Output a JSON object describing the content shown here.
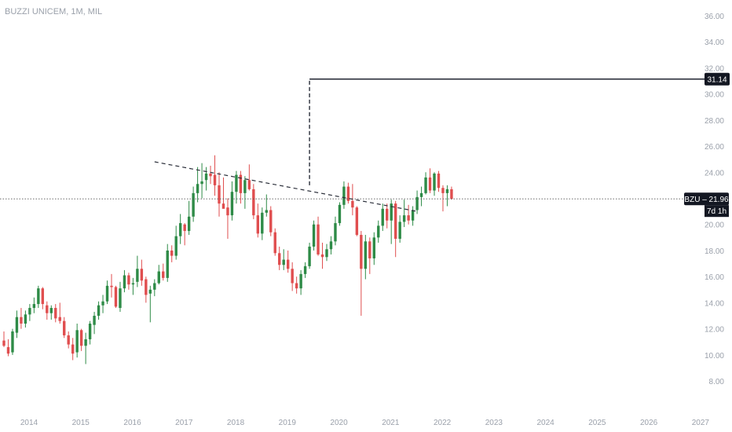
{
  "header": {
    "title": "BUZZI UNICEM, 1M, MIL"
  },
  "colors": {
    "up": "#2e8b47",
    "down": "#e04e4f",
    "axis_text": "#9aa0aa",
    "label_bg": "#131722"
  },
  "chart_data": {
    "type": "candlestick",
    "title": "BUZZI UNICEM, 1M, MIL",
    "interval": "1M",
    "ylim": [
      6.5,
      36.6
    ],
    "y_ticks": [
      8,
      10,
      12,
      14,
      16,
      18,
      20,
      22,
      24,
      26,
      28,
      30,
      32,
      34,
      36
    ],
    "y_tick_labels": [
      "8.00",
      "10.00",
      "12.00",
      "14.00",
      "16.00",
      "18.00",
      "20.00",
      "22.00",
      "24.00",
      "26.00",
      "28.00",
      "30.00",
      "32.00",
      "34.00",
      "36.00"
    ],
    "x_tick_labels": [
      "2014",
      "2015",
      "2016",
      "2017",
      "2018",
      "2019",
      "2020",
      "2021",
      "2022",
      "2023",
      "2024",
      "2025",
      "2026",
      "2027"
    ],
    "start": "2014-01",
    "candles": [
      [
        11.1,
        11.8,
        10.6,
        10.7
      ],
      [
        10.6,
        11.2,
        9.9,
        10.1
      ],
      [
        10.2,
        12.0,
        10.0,
        11.8
      ],
      [
        11.7,
        13.4,
        11.3,
        12.9
      ],
      [
        12.9,
        13.6,
        12.0,
        12.4
      ],
      [
        12.4,
        13.4,
        12.1,
        13.1
      ],
      [
        13.1,
        13.9,
        12.6,
        13.6
      ],
      [
        13.6,
        14.4,
        13.2,
        13.9
      ],
      [
        13.9,
        15.3,
        13.6,
        15.1
      ],
      [
        15.1,
        15.2,
        13.5,
        13.9
      ],
      [
        13.8,
        14.1,
        12.7,
        13.2
      ],
      [
        13.2,
        13.8,
        12.7,
        13.6
      ],
      [
        13.6,
        13.9,
        12.5,
        12.8
      ],
      [
        12.9,
        14.0,
        12.4,
        12.6
      ],
      [
        12.6,
        12.9,
        11.3,
        11.5
      ],
      [
        11.5,
        11.8,
        10.5,
        10.8
      ],
      [
        10.8,
        11.3,
        9.6,
        10.1
      ],
      [
        10.2,
        12.4,
        9.8,
        11.9
      ],
      [
        11.9,
        12.0,
        10.3,
        10.7
      ],
      [
        10.7,
        11.7,
        9.3,
        11.2
      ],
      [
        11.2,
        12.6,
        10.8,
        12.4
      ],
      [
        12.3,
        13.3,
        11.6,
        13.0
      ],
      [
        13.0,
        14.1,
        12.7,
        13.8
      ],
      [
        13.8,
        14.6,
        13.2,
        14.1
      ],
      [
        14.1,
        15.7,
        13.9,
        15.3
      ],
      [
        15.3,
        16.2,
        14.4,
        15.2
      ],
      [
        15.2,
        15.3,
        13.6,
        13.7
      ],
      [
        13.6,
        15.6,
        13.3,
        15.1
      ],
      [
        15.1,
        16.5,
        14.8,
        16.1
      ],
      [
        16.1,
        16.3,
        15.0,
        15.4
      ],
      [
        15.4,
        15.9,
        14.6,
        15.5
      ],
      [
        15.6,
        17.6,
        15.2,
        16.6
      ],
      [
        16.6,
        17.3,
        15.3,
        15.7
      ],
      [
        15.8,
        16.0,
        14.0,
        14.6
      ],
      [
        14.7,
        15.3,
        12.5,
        15.0
      ],
      [
        15.0,
        15.8,
        14.5,
        15.5
      ],
      [
        15.5,
        16.9,
        15.4,
        16.4
      ],
      [
        16.4,
        17.0,
        15.7,
        15.9
      ],
      [
        15.9,
        18.5,
        15.6,
        18.0
      ],
      [
        18.0,
        18.4,
        17.1,
        17.6
      ],
      [
        17.6,
        19.9,
        17.3,
        19.1
      ],
      [
        19.1,
        20.8,
        18.5,
        20.1
      ],
      [
        20.0,
        20.1,
        18.4,
        19.5
      ],
      [
        19.5,
        21.8,
        19.2,
        20.6
      ],
      [
        20.6,
        22.9,
        20.2,
        22.4
      ],
      [
        22.4,
        24.4,
        21.7,
        23.1
      ],
      [
        23.1,
        24.7,
        22.0,
        23.3
      ],
      [
        23.4,
        24.4,
        22.6,
        23.9
      ],
      [
        23.9,
        24.5,
        23.1,
        23.7
      ],
      [
        23.8,
        25.3,
        22.2,
        23.0
      ],
      [
        23.0,
        24.0,
        20.6,
        21.6
      ],
      [
        21.6,
        23.6,
        21.3,
        21.2
      ],
      [
        21.3,
        22.0,
        18.9,
        20.7
      ],
      [
        20.7,
        23.3,
        20.3,
        22.5
      ],
      [
        22.5,
        24.1,
        21.6,
        23.8
      ],
      [
        23.8,
        24.1,
        21.6,
        22.4
      ],
      [
        22.4,
        23.7,
        21.2,
        23.4
      ],
      [
        23.4,
        24.6,
        22.6,
        22.7
      ],
      [
        22.7,
        23.1,
        20.4,
        20.7
      ],
      [
        20.7,
        21.6,
        19.0,
        19.3
      ],
      [
        19.3,
        21.3,
        18.8,
        20.9
      ],
      [
        20.9,
        22.3,
        20.6,
        21.1
      ],
      [
        21.1,
        21.4,
        19.1,
        19.4
      ],
      [
        19.4,
        19.7,
        17.6,
        17.8
      ],
      [
        17.8,
        18.3,
        16.5,
        16.9
      ],
      [
        16.9,
        18.1,
        16.5,
        17.3
      ],
      [
        17.3,
        18.0,
        16.3,
        16.6
      ],
      [
        16.6,
        17.1,
        14.9,
        15.5
      ],
      [
        15.5,
        16.0,
        14.7,
        15.1
      ],
      [
        15.1,
        16.5,
        14.6,
        16.2
      ],
      [
        16.2,
        17.1,
        15.9,
        16.8
      ],
      [
        16.8,
        18.6,
        16.6,
        18.3
      ],
      [
        18.3,
        20.3,
        18.0,
        20.0
      ],
      [
        20.0,
        20.6,
        17.6,
        17.7
      ],
      [
        17.7,
        18.6,
        16.6,
        17.5
      ],
      [
        17.5,
        18.5,
        17.2,
        18.1
      ],
      [
        18.1,
        19.1,
        17.7,
        18.7
      ],
      [
        18.7,
        20.6,
        18.4,
        20.1
      ],
      [
        20.1,
        21.7,
        19.9,
        21.5
      ],
      [
        21.5,
        23.3,
        21.2,
        22.9
      ],
      [
        22.9,
        23.2,
        21.6,
        21.8
      ],
      [
        21.8,
        23.1,
        20.7,
        21.3
      ],
      [
        21.3,
        21.4,
        19.1,
        19.2
      ],
      [
        19.2,
        19.5,
        13.0,
        16.6
      ],
      [
        16.6,
        19.2,
        15.8,
        18.7
      ],
      [
        18.7,
        19.0,
        16.2,
        17.4
      ],
      [
        17.4,
        19.4,
        16.9,
        19.0
      ],
      [
        19.0,
        20.3,
        18.6,
        19.9
      ],
      [
        19.9,
        21.6,
        19.5,
        21.2
      ],
      [
        21.2,
        21.6,
        19.7,
        20.3
      ],
      [
        20.3,
        21.9,
        18.5,
        21.6
      ],
      [
        21.6,
        21.8,
        17.5,
        18.9
      ],
      [
        18.9,
        20.7,
        18.6,
        20.2
      ],
      [
        20.2,
        21.9,
        19.8,
        20.7
      ],
      [
        20.7,
        21.5,
        20.0,
        20.3
      ],
      [
        20.3,
        21.4,
        19.9,
        21.1
      ],
      [
        21.1,
        22.6,
        20.8,
        22.1
      ],
      [
        22.1,
        22.9,
        21.4,
        22.4
      ],
      [
        22.4,
        24.0,
        22.3,
        23.6
      ],
      [
        23.6,
        24.3,
        22.4,
        22.6
      ],
      [
        22.6,
        24.0,
        22.2,
        23.9
      ],
      [
        23.9,
        24.1,
        22.5,
        22.8
      ],
      [
        22.8,
        23.0,
        21.0,
        22.4
      ],
      [
        22.4,
        23.0,
        21.4,
        22.7
      ],
      [
        22.7,
        22.9,
        21.9,
        21.96
      ]
    ],
    "candle_fields": [
      "open",
      "high",
      "low",
      "close"
    ],
    "annotations": {
      "trendline": {
        "start": [
          "2016-12",
          24.8
        ],
        "end": [
          "2022-01",
          21.0
        ],
        "style": "dashed"
      },
      "target": {
        "from": [
          "2019-12",
          23.0
        ],
        "level": 31.14,
        "style": "vertical dashed then horizontal solid"
      },
      "last_price": 21.96
    },
    "price_label": {
      "symbol": "BZU",
      "value": "21.96",
      "text": "BZU – 21.96",
      "countdown": "7d 1h"
    },
    "target_label": "31.14"
  }
}
